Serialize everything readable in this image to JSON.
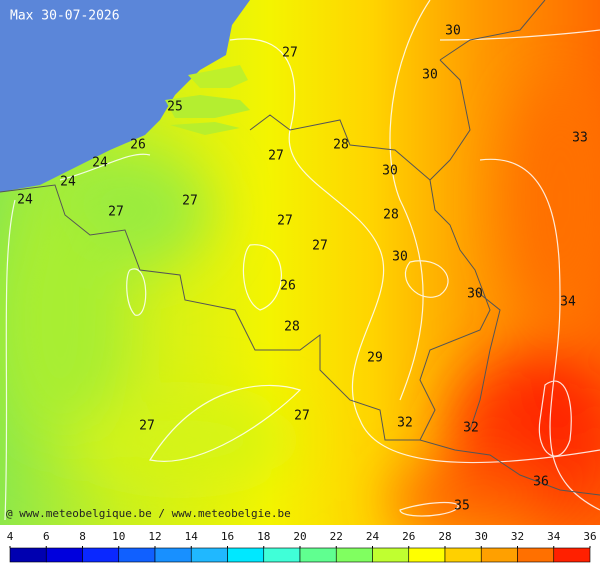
{
  "title": "Max 30-07-2026",
  "credit": "@ www.meteobelgique.be / www.meteobelgie.be",
  "contour_labels": [
    "27",
    "30",
    "30",
    "25",
    "26",
    "24",
    "27",
    "28",
    "33",
    "24",
    "30",
    "24",
    "27",
    "27",
    "28",
    "27",
    "27",
    "30",
    "26",
    "30",
    "34",
    "28",
    "29",
    "27",
    "32",
    "27",
    "32",
    "36",
    "35"
  ],
  "legend": {
    "ticks": [
      4,
      6,
      8,
      10,
      12,
      14,
      16,
      18,
      20,
      22,
      24,
      26,
      28,
      30,
      32,
      34,
      36
    ],
    "colors": [
      "#0000b0",
      "#0000dd",
      "#0a28ff",
      "#1060ff",
      "#1890ff",
      "#20b8ff",
      "#00e8ff",
      "#40ffd8",
      "#60ff90",
      "#80ff60",
      "#c0ff30",
      "#ffff00",
      "#ffd000",
      "#ffa000",
      "#ff7000",
      "#ff2000"
    ]
  }
}
